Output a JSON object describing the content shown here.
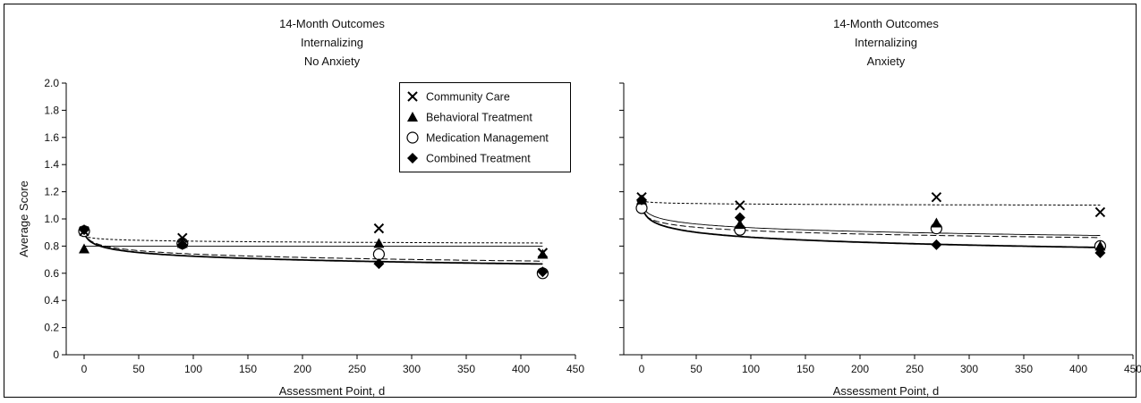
{
  "chart_data": [
    {
      "type": "scatter",
      "title": [
        "14-Month Outcomes",
        "Internalizing",
        "No Anxiety"
      ],
      "xlabel": "Assessment Point, d",
      "ylabel": "Average Score",
      "xlim": [
        -15,
        450
      ],
      "ylim": [
        0,
        2.0
      ],
      "xticks": [
        0,
        50,
        100,
        150,
        200,
        250,
        300,
        350,
        400,
        450
      ],
      "yticks": [
        0,
        0.2,
        0.4,
        0.6,
        0.8,
        1.0,
        1.2,
        1.4,
        1.6,
        1.8,
        2.0
      ],
      "ytick_labels": [
        "0",
        "0.2",
        "0.4",
        "0.6",
        "0.8",
        "1.0",
        "1.2",
        "1.4",
        "1.6",
        "1.8",
        "2.0"
      ],
      "legend": "top-right",
      "series": [
        {
          "name": "Community Care",
          "marker": "x",
          "x": [
            0,
            90,
            270,
            420
          ],
          "values": [
            0.91,
            0.86,
            0.93,
            0.75
          ],
          "fit": {
            "style": "dotted",
            "a": 0.88,
            "b": -0.0095
          }
        },
        {
          "name": "Behavioral Treatment",
          "marker": "triangle",
          "x": [
            0,
            90,
            270,
            420
          ],
          "values": [
            0.78,
            0.82,
            0.82,
            0.74
          ],
          "fit": {
            "style": "thin-solid",
            "a": 0.8,
            "b": 0.0
          }
        },
        {
          "name": "Medication Management",
          "marker": "circle",
          "x": [
            0,
            90,
            270,
            420
          ],
          "values": [
            0.91,
            0.82,
            0.74,
            0.6
          ],
          "fit": {
            "style": "dashed",
            "a": 0.91,
            "b": -0.0365
          }
        },
        {
          "name": "Combined Treatment",
          "marker": "diamond",
          "x": [
            0,
            90,
            270,
            420
          ],
          "values": [
            0.92,
            0.81,
            0.67,
            0.61
          ],
          "fit": {
            "style": "thick-solid",
            "a": 0.91,
            "b": -0.04
          }
        }
      ]
    },
    {
      "type": "scatter",
      "title": [
        "14-Month Outcomes",
        "Internalizing",
        "Anxiety"
      ],
      "xlabel": "Assessment Point, d",
      "ylabel": "",
      "xlim": [
        -15,
        450
      ],
      "ylim": [
        0,
        2.0
      ],
      "xticks": [
        0,
        50,
        100,
        150,
        200,
        250,
        300,
        350,
        400,
        450
      ],
      "yticks": [
        0,
        0.2,
        0.4,
        0.6,
        0.8,
        1.0,
        1.2,
        1.4,
        1.6,
        1.8,
        2.0
      ],
      "ytick_labels": [],
      "legend": "",
      "series": [
        {
          "name": "Community Care",
          "marker": "x",
          "x": [
            0,
            90,
            270,
            420
          ],
          "values": [
            1.16,
            1.1,
            1.16,
            1.05
          ],
          "fit": {
            "style": "dotted",
            "a": 1.135,
            "b": -0.0055
          }
        },
        {
          "name": "Behavioral Treatment",
          "marker": "triangle",
          "x": [
            0,
            90,
            270,
            420
          ],
          "values": [
            1.14,
            0.96,
            0.97,
            0.8
          ],
          "fit": {
            "style": "thin-solid",
            "a": 1.12,
            "b": -0.04
          }
        },
        {
          "name": "Medication Management",
          "marker": "circle",
          "x": [
            0,
            90,
            270,
            420
          ],
          "values": [
            1.08,
            0.92,
            0.93,
            0.8
          ],
          "fit": {
            "style": "dashed",
            "a": 1.08,
            "b": -0.036
          }
        },
        {
          "name": "Combined Treatment",
          "marker": "diamond",
          "x": [
            0,
            90,
            270,
            420
          ],
          "values": [
            1.14,
            1.01,
            0.81,
            0.75
          ],
          "fit": {
            "style": "thick-solid",
            "a": 1.11,
            "b": -0.053
          }
        }
      ]
    }
  ]
}
